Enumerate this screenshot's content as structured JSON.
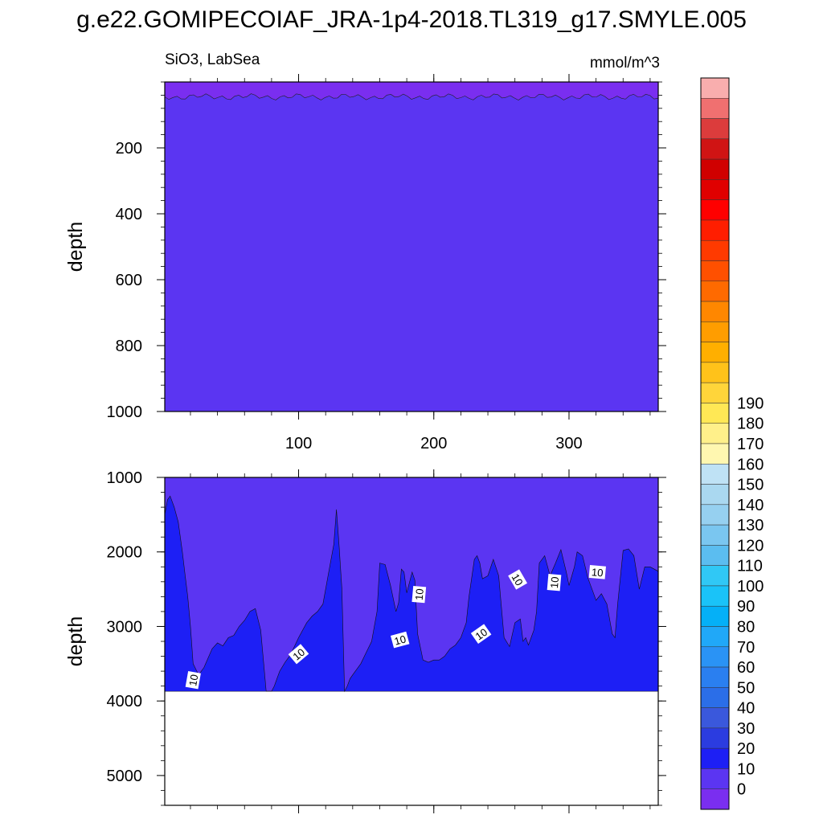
{
  "title": "g.e22.GOMIPECOIAF_JRA-1p4-2018.TL319_g17.SMYLE.005",
  "variable_label": "SiO3, LabSea",
  "units_label": "mmol/m^3",
  "chart_data": {
    "type": "heatmap",
    "title": "g.e22.GOMIPECOIAF_JRA-1p4-2018.TL319_g17.SMYLE.005",
    "subtitle_left": "SiO3, LabSea",
    "subtitle_right": "mmol/m^3",
    "x_range": [
      1,
      366
    ],
    "x_ticks": [
      100,
      200,
      300
    ],
    "panels": [
      {
        "name": "upper",
        "ylabel": "depth",
        "ylim": [
          0,
          1000
        ],
        "y_reversed": true,
        "y_ticks": [
          200,
          400,
          600,
          800,
          1000
        ],
        "x_tick_labels_shown": true,
        "background_level_color": "#5b35f2",
        "surface_layer": {
          "color": "#7a2ef0",
          "depth_approx": 45
        }
      },
      {
        "name": "lower",
        "ylabel": "depth",
        "ylim": [
          1000,
          5400
        ],
        "y_reversed": true,
        "y_ticks": [
          1000,
          2000,
          3000,
          4000,
          5000
        ],
        "x_tick_labels_shown": false,
        "fill_bottom_depth": 3870,
        "upper_color": "#5b35f2",
        "lower_color": "#1d1ff5",
        "contour_10_boundary": {
          "x": [
            1,
            3,
            5,
            8,
            11,
            14,
            16,
            18,
            20,
            22,
            26,
            30,
            36,
            40,
            44,
            48,
            52,
            56,
            60,
            64,
            68,
            72,
            76,
            80,
            82,
            84,
            86,
            90,
            94,
            100,
            106,
            110,
            114,
            118,
            122,
            126,
            128,
            130,
            132,
            134,
            136,
            138,
            140,
            146,
            150,
            154,
            156,
            158,
            160,
            164,
            168,
            172,
            174,
            176,
            178,
            180,
            184,
            186,
            188,
            192,
            196,
            200,
            204,
            208,
            212,
            216,
            220,
            224,
            226,
            230,
            232,
            234,
            236,
            240,
            244,
            248,
            252,
            256,
            260,
            264,
            266,
            268,
            270,
            274,
            276,
            278,
            282,
            286,
            290,
            294,
            298,
            300,
            304,
            306,
            310,
            314,
            318,
            320,
            324,
            328,
            332,
            334,
            336,
            340,
            344,
            348,
            352,
            356,
            360,
            366
          ],
          "depth": [
            1500,
            1300,
            1250,
            1400,
            1600,
            2000,
            2300,
            2600,
            3000,
            3500,
            3650,
            3550,
            3300,
            3220,
            3260,
            3150,
            3120,
            3000,
            2920,
            2800,
            2760,
            3050,
            3870,
            3870,
            3800,
            3700,
            3600,
            3480,
            3380,
            3150,
            2950,
            2860,
            2800,
            2700,
            2300,
            1900,
            1430,
            1930,
            2500,
            3870,
            3800,
            3700,
            3650,
            3500,
            3350,
            3200,
            3000,
            2800,
            2150,
            2170,
            2450,
            2800,
            2680,
            2230,
            2270,
            2550,
            2270,
            2380,
            3100,
            3450,
            3480,
            3450,
            3450,
            3400,
            3300,
            3250,
            3150,
            2950,
            2600,
            2100,
            2050,
            2150,
            2360,
            2320,
            2100,
            2320,
            3150,
            3270,
            2950,
            2900,
            3200,
            3150,
            3250,
            3050,
            2800,
            2150,
            2050,
            2320,
            2150,
            1970,
            2270,
            2450,
            2200,
            2000,
            2050,
            2350,
            2550,
            2650,
            2560,
            2700,
            3100,
            3150,
            2700,
            1980,
            1960,
            2050,
            2500,
            2200,
            2200,
            2260
          ]
        },
        "contour_labels": [
          {
            "text": "10",
            "x": 22,
            "depth": 3720,
            "angle": -80
          },
          {
            "text": "10",
            "x": 100,
            "depth": 3370,
            "angle": -40
          },
          {
            "text": "10",
            "x": 175,
            "depth": 3180,
            "angle": -15
          },
          {
            "text": "10",
            "x": 189,
            "depth": 2570,
            "angle": -85
          },
          {
            "text": "10",
            "x": 235,
            "depth": 3100,
            "angle": -35
          },
          {
            "text": "10",
            "x": 262,
            "depth": 2370,
            "angle": 60
          },
          {
            "text": "10",
            "x": 289,
            "depth": 2410,
            "angle": -85
          },
          {
            "text": "10",
            "x": 321,
            "depth": 2270,
            "angle": 5
          }
        ]
      }
    ],
    "colorbar": {
      "labels": [
        "0",
        "10",
        "20",
        "30",
        "40",
        "50",
        "60",
        "70",
        "80",
        "90",
        "100",
        "110",
        "120",
        "130",
        "140",
        "150",
        "160",
        "170",
        "180",
        "190"
      ],
      "colors": [
        "#7a2ef0",
        "#5b35f2",
        "#1d1ff5",
        "#2b3ce0",
        "#3a58dc",
        "#2b6ee8",
        "#2a7ff0",
        "#2a93f5",
        "#20a8f8",
        "#05b0f7",
        "#1ac3f8",
        "#30c8f5",
        "#5bbdf0",
        "#7ac6f0",
        "#96d0f0",
        "#aad8f0",
        "#bfe2f5",
        "#fff7b0",
        "#fff08a",
        "#ffe855",
        "#ffd53a",
        "#ffc21a",
        "#ffaf00",
        "#ff9d00",
        "#ff8700",
        "#ff6a00",
        "#ff5000",
        "#ff3a00",
        "#ff1e00",
        "#ff0000",
        "#e00000",
        "#d00000",
        "#d01414",
        "#dc3c3c",
        "#f07070",
        "#f9aeae"
      ]
    }
  }
}
